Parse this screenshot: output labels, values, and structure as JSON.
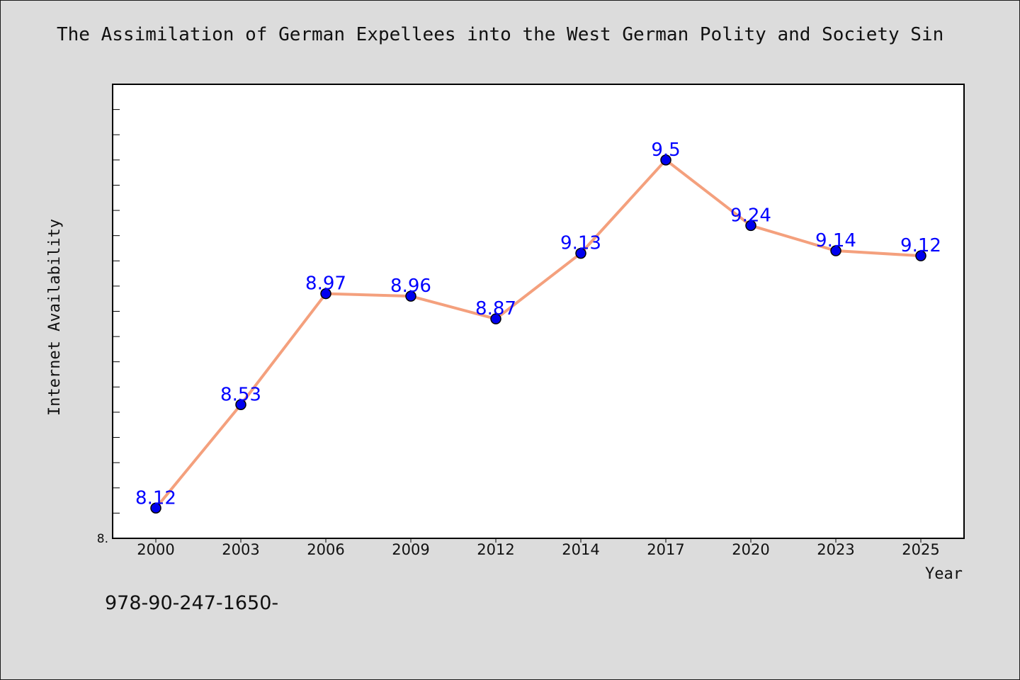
{
  "chart_data": {
    "type": "line",
    "title": "The Assimilation of German Expellees into the West German Polity and Society Sin",
    "xlabel": "Year",
    "ylabel": "Internet Availability",
    "categories": [
      "2000",
      "2003",
      "2006",
      "2009",
      "2012",
      "2014",
      "2017",
      "2020",
      "2023",
      "2025"
    ],
    "series": [
      {
        "values": [
          8.12,
          8.53,
          8.97,
          8.96,
          8.87,
          9.13,
          9.5,
          9.24,
          9.14,
          9.12
        ],
        "data_labels": [
          "8.12",
          "8.53",
          "8.97",
          "8.96",
          "8.87",
          "9.13",
          "9.5",
          "9.24",
          "9.14",
          "9.12"
        ]
      }
    ],
    "ylim": [
      8.0,
      9.8
    ],
    "y_tick_labels": [
      "8."
    ],
    "grid": false,
    "legend": "none",
    "colors": {
      "line": "#f4a07d",
      "marker": "#0000ee",
      "data_label": "#0000ff",
      "plot_background": "#ffffff",
      "page_background": "#dcdcdc"
    }
  },
  "footer_note": "978-90-247-1650-"
}
